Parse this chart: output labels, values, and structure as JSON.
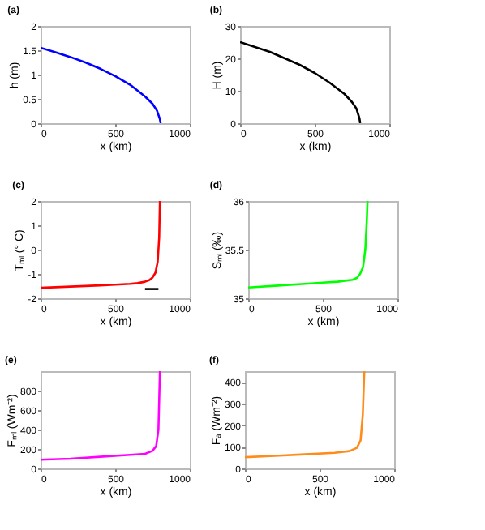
{
  "chart_data": [
    {
      "type": "line",
      "title": "(a)",
      "xlabel": "x (km)",
      "ylabel": "h (m)",
      "x": [
        0,
        100,
        200,
        300,
        400,
        500,
        600,
        700,
        750,
        780,
        800,
        805
      ],
      "xlim": [
        0,
        1000
      ],
      "xticks": [
        0,
        500,
        1000
      ],
      "ylim": [
        0,
        2
      ],
      "yticks": [
        0,
        0.5,
        1,
        1.5,
        2
      ],
      "series": [
        {
          "color": "#0000ff",
          "values": [
            1.55,
            1.46,
            1.36,
            1.25,
            1.12,
            0.97,
            0.79,
            0.55,
            0.4,
            0.26,
            0.08,
            0
          ]
        }
      ]
    },
    {
      "type": "line",
      "title": "(b)",
      "xlabel": "x (km)",
      "ylabel": "H (m)",
      "x": [
        0,
        100,
        200,
        300,
        400,
        500,
        600,
        700,
        750,
        780,
        800,
        805
      ],
      "xlim": [
        0,
        1000
      ],
      "xticks": [
        0,
        500,
        1000
      ],
      "ylim": [
        0,
        30
      ],
      "yticks": [
        0,
        10,
        20,
        30
      ],
      "series": [
        {
          "color": "#000000",
          "values": [
            25,
            23.5,
            22,
            20,
            18,
            15.5,
            12.5,
            9,
            6.5,
            4.5,
            1.5,
            0
          ]
        }
      ]
    },
    {
      "type": "line",
      "title": "(c)",
      "xlabel": "x (km)",
      "ylabel": "Tₘₗ (° C)",
      "x": [
        0,
        200,
        400,
        500,
        600,
        650,
        700,
        730,
        750,
        770,
        785,
        795,
        800
      ],
      "xlim": [
        0,
        1000
      ],
      "xticks": [
        0,
        500,
        1000
      ],
      "ylim": [
        -2,
        2
      ],
      "yticks": [
        -2,
        -1,
        0,
        1,
        2
      ],
      "series": [
        {
          "color": "#ff0000",
          "values": [
            -1.57,
            -1.52,
            -1.47,
            -1.44,
            -1.41,
            -1.38,
            -1.32,
            -1.25,
            -1.15,
            -0.95,
            -0.5,
            0.5,
            2
          ]
        },
        {
          "color": "#000000",
          "x": [
            700,
            790
          ],
          "values": [
            -1.62,
            -1.62
          ]
        }
      ]
    },
    {
      "type": "line",
      "title": "(d)",
      "xlabel": "x (km)",
      "ylabel": "Sₘₗ (‰)",
      "x": [
        0,
        200,
        400,
        500,
        600,
        650,
        700,
        730,
        750,
        770,
        785,
        795,
        800
      ],
      "xlim": [
        0,
        1000
      ],
      "xticks": [
        0,
        500,
        1000
      ],
      "ylim": [
        35,
        36
      ],
      "yticks": [
        35,
        35.5,
        36
      ],
      "series": [
        {
          "color": "#00ff00",
          "values": [
            35.11,
            35.13,
            35.15,
            35.16,
            35.17,
            35.18,
            35.19,
            35.21,
            35.25,
            35.32,
            35.5,
            35.8,
            36
          ]
        }
      ]
    },
    {
      "type": "line",
      "title": "(e)",
      "xlabel": "x (km)",
      "ylabel": "Fₘₗ (Wm⁻²)",
      "x": [
        0,
        200,
        400,
        600,
        700,
        750,
        775,
        790,
        800
      ],
      "xlim": [
        0,
        1000
      ],
      "xticks": [
        0,
        500,
        1000
      ],
      "ylim": [
        0,
        1000
      ],
      "yticks": [
        0,
        200,
        400,
        600,
        800
      ],
      "series": [
        {
          "color": "#ff00ff",
          "values": [
            90,
            100,
            120,
            140,
            150,
            180,
            230,
            400,
            1000
          ]
        }
      ]
    },
    {
      "type": "line",
      "title": "(f)",
      "xlabel": "x (km)",
      "ylabel": "Fₐ (Wm⁻²)",
      "x": [
        0,
        200,
        400,
        600,
        700,
        750,
        775,
        790,
        800
      ],
      "xlim": [
        0,
        1000
      ],
      "xticks": [
        0,
        500,
        1000
      ],
      "ylim": [
        0,
        450
      ],
      "yticks": [
        0,
        100,
        200,
        300,
        400
      ],
      "series": [
        {
          "color": "#ff8c1a",
          "values": [
            52,
            58,
            65,
            72,
            80,
            95,
            130,
            250,
            450
          ]
        }
      ]
    }
  ]
}
